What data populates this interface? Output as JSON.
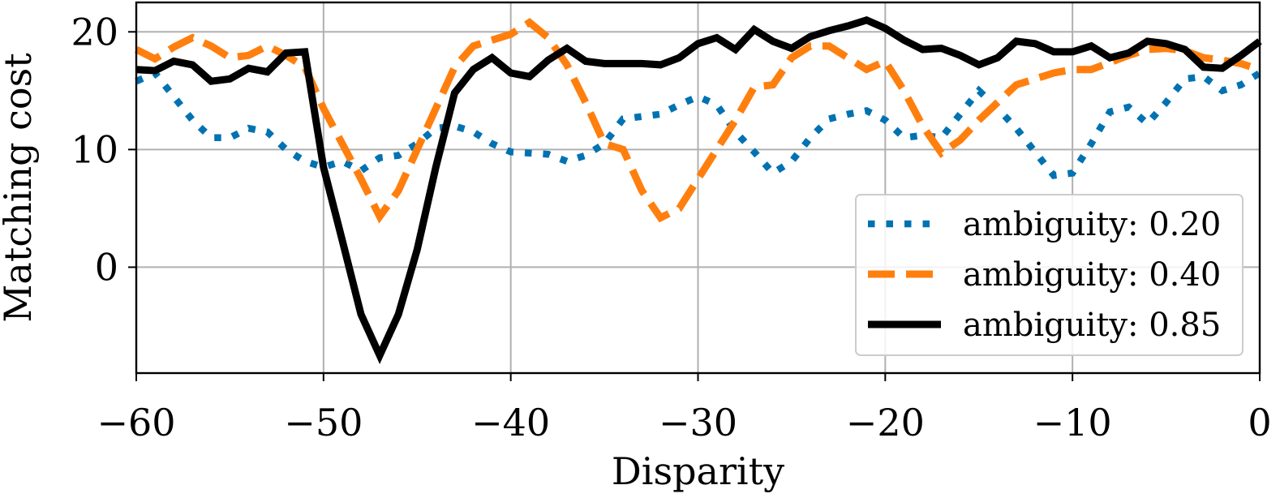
{
  "chart_data": {
    "type": "line",
    "title": "",
    "xlabel": "Disparity",
    "ylabel": "Matching cost",
    "xlim": [
      -60,
      0
    ],
    "ylim": [
      -9,
      22.5
    ],
    "xticks": [
      -60,
      -50,
      -40,
      -30,
      -20,
      -10,
      0
    ],
    "xtick_labels": [
      "−60",
      "−50",
      "−40",
      "−30",
      "−20",
      "−10",
      "0"
    ],
    "yticks": [
      0,
      10,
      20
    ],
    "ytick_labels": [
      "0",
      "10",
      "20"
    ],
    "grid": true,
    "legend_position": "lower-right",
    "x": [
      -60,
      -59,
      -58,
      -57,
      -56,
      -55,
      -54,
      -53,
      -52,
      -51,
      -50,
      -49,
      -48,
      -47,
      -46,
      -45,
      -44,
      -43,
      -42,
      -41,
      -40,
      -39,
      -38,
      -37,
      -36,
      -35,
      -34,
      -33,
      -32,
      -31,
      -30,
      -29,
      -28,
      -27,
      -26,
      -25,
      -24,
      -23,
      -22,
      -21,
      -20,
      -19,
      -18,
      -17,
      -16,
      -15,
      -14,
      -13,
      -12,
      -11,
      -10,
      -9,
      -8,
      -7,
      -6,
      -5,
      -4,
      -3,
      -2,
      -1,
      0
    ],
    "series": [
      {
        "name": "ambiguity: 0.20",
        "color": "#0072B2",
        "dash": "dotted",
        "values": [
          15.8,
          16.5,
          14.5,
          12.5,
          11.0,
          11.0,
          11.8,
          11.5,
          10.0,
          9.0,
          8.5,
          9.0,
          8.2,
          9.3,
          9.5,
          10.5,
          11.8,
          12.0,
          11.5,
          10.5,
          9.8,
          9.7,
          9.6,
          9.0,
          9.5,
          10.5,
          12.6,
          12.8,
          13.0,
          13.8,
          14.5,
          13.8,
          11.5,
          9.8,
          8.0,
          9.0,
          11.0,
          12.6,
          13.0,
          13.3,
          12.5,
          11.0,
          11.2,
          11.0,
          13.0,
          15.0,
          13.5,
          11.8,
          9.8,
          7.8,
          8.0,
          10.5,
          13.2,
          13.6,
          12.2,
          14.0,
          16.0,
          16.2,
          15.0,
          15.5,
          16.5
        ]
      },
      {
        "name": "ambiguity: 0.40",
        "color": "#FF7F0E",
        "dash": "dashed",
        "values": [
          18.5,
          17.7,
          18.7,
          19.5,
          18.8,
          17.8,
          18.0,
          18.8,
          18.0,
          17.0,
          13.5,
          10.5,
          7.5,
          4.3,
          6.5,
          10.0,
          13.5,
          17.0,
          18.8,
          19.3,
          19.8,
          20.8,
          19.5,
          17.2,
          14.0,
          10.5,
          10.0,
          6.5,
          4.2,
          5.0,
          7.5,
          10.0,
          12.5,
          15.3,
          15.5,
          17.8,
          18.8,
          18.8,
          17.8,
          16.8,
          17.5,
          15.0,
          12.0,
          9.7,
          10.8,
          12.5,
          14.0,
          15.5,
          16.0,
          16.5,
          16.8,
          16.8,
          17.4,
          18.0,
          18.5,
          18.6,
          18.4,
          17.8,
          17.6,
          17.3,
          16.8
        ]
      },
      {
        "name": "ambiguity: 0.85",
        "color": "#000000",
        "dash": "solid",
        "values": [
          16.8,
          16.7,
          17.5,
          17.2,
          15.8,
          16.0,
          16.9,
          16.6,
          18.2,
          18.3,
          8.5,
          2.3,
          -4.0,
          -7.5,
          -4.0,
          1.5,
          8.5,
          14.8,
          16.8,
          17.8,
          16.5,
          16.2,
          17.6,
          18.6,
          17.5,
          17.3,
          17.3,
          17.3,
          17.2,
          17.8,
          19.0,
          19.5,
          18.5,
          20.2,
          19.2,
          18.6,
          19.6,
          20.1,
          20.5,
          21.0,
          20.3,
          19.3,
          18.5,
          18.6,
          18.0,
          17.2,
          17.8,
          19.2,
          19.0,
          18.3,
          18.3,
          18.8,
          17.8,
          18.2,
          19.2,
          19.0,
          18.5,
          17.0,
          16.9,
          18.0,
          19.2
        ]
      }
    ]
  }
}
